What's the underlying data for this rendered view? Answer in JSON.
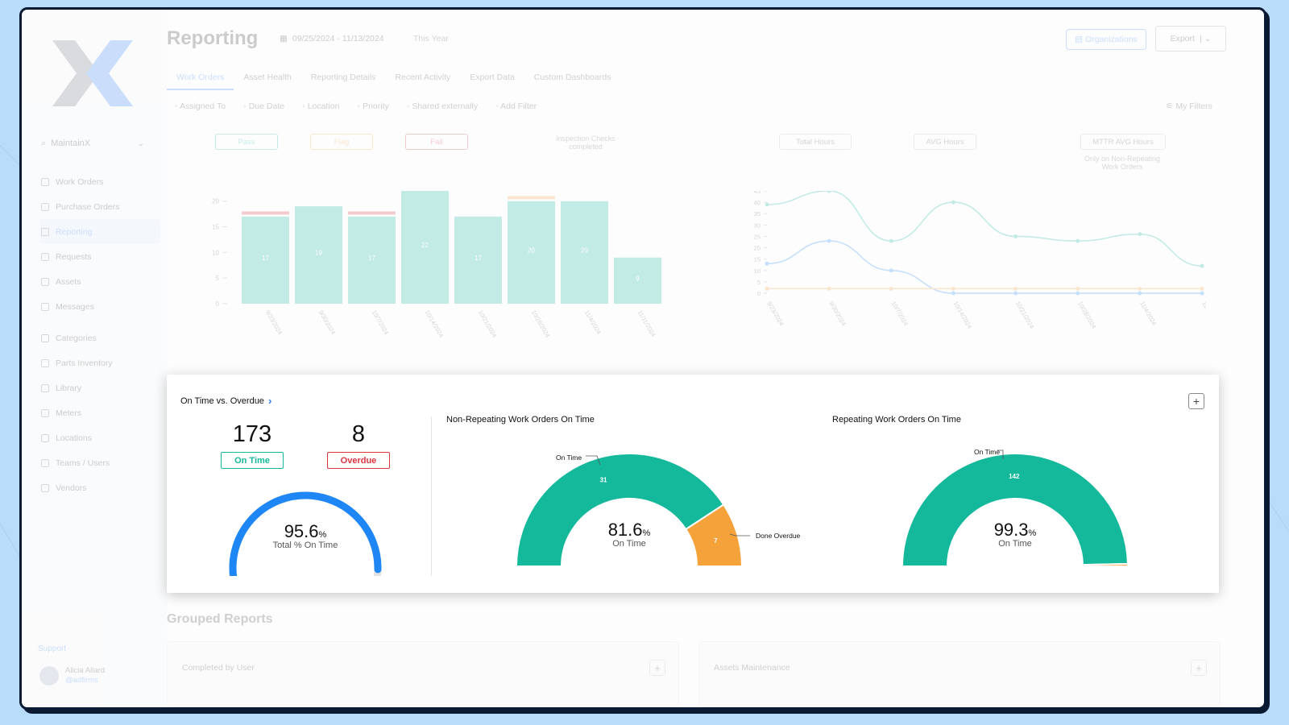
{
  "app": {
    "org_name": "MaintainX",
    "page_title": "Reporting",
    "date_range": "09/25/2024 - 11/13/2024",
    "date_preset": "This Year",
    "organizations_button": "Organizations",
    "export_button": "Export",
    "tabs": [
      {
        "label": "Work Orders",
        "active": true
      },
      {
        "label": "Asset Health"
      },
      {
        "label": "Reporting Details"
      },
      {
        "label": "Recent Activity"
      },
      {
        "label": "Export Data"
      },
      {
        "label": "Custom Dashboards"
      }
    ],
    "filters": [
      {
        "label": "Assigned To",
        "icon": "user-icon"
      },
      {
        "label": "Due Date",
        "icon": "clock-icon"
      },
      {
        "label": "Location",
        "icon": "pin-icon"
      },
      {
        "label": "Priority",
        "icon": "flag-icon"
      },
      {
        "label": "Shared externally",
        "icon": "share-icon"
      },
      {
        "label": "Add Filter",
        "icon": "plus-icon"
      }
    ],
    "my_filters": "My Filters",
    "sidebar": {
      "items": [
        {
          "label": "Work Orders",
          "icon": "clipboard-icon"
        },
        {
          "label": "Purchase Orders",
          "icon": "document-icon"
        },
        {
          "label": "Reporting",
          "icon": "chart-icon",
          "active": true
        },
        {
          "label": "Requests",
          "icon": "inbox-icon"
        },
        {
          "label": "Assets",
          "icon": "cube-icon"
        },
        {
          "label": "Messages",
          "icon": "chat-icon"
        },
        {
          "label": "Categories",
          "icon": "tag-icon"
        },
        {
          "label": "Parts Inventory",
          "icon": "gear-icon"
        },
        {
          "label": "Library",
          "icon": "book-icon"
        },
        {
          "label": "Meters",
          "icon": "meter-icon"
        },
        {
          "label": "Locations",
          "icon": "pin-icon"
        },
        {
          "label": "Teams / Users",
          "icon": "users-icon"
        },
        {
          "label": "Vendors",
          "icon": "store-icon"
        }
      ],
      "support": "Support",
      "user_name": "Alicia Allard",
      "user_handle": "@adfirms"
    },
    "chips": {
      "pass": "Pass",
      "flag": "Flag",
      "fail": "Fail",
      "inspection_label": "Inspection Checks completed",
      "total_hours": "Total Hours",
      "avg_hours": "AVG Hours",
      "mttr": "MTTR AVG Hours",
      "mttr_sub": "Only on Non-Repeating Work Orders"
    },
    "grouped_reports": {
      "title": "Grouped Reports",
      "cards": [
        "Completed by User",
        "Assets Maintenance"
      ]
    }
  },
  "colors": {
    "teal": "#14b89a",
    "orange": "#f5a23b",
    "blue": "#1f86f5",
    "red": "#d9363e",
    "accent": "#2d7ff9"
  },
  "card": {
    "title": "On Time vs. Overdue",
    "on_time_count": "173",
    "on_time_label": "On Time",
    "overdue_count": "8",
    "overdue_label": "Overdue",
    "total_gauge": {
      "value": "95.6",
      "pct_sign": "%",
      "caption": "Total % On Time"
    },
    "non_repeating": {
      "title": "Non-Repeating Work Orders On Time",
      "value": "81.6",
      "pct_sign": "%",
      "caption": "On Time",
      "on_time_callout": "On Time",
      "overdue_callout": "Done Overdue",
      "on_time_slice_label": "31",
      "overdue_slice_label": "7"
    },
    "repeating": {
      "title": "Repeating Work Orders On Time",
      "value": "99.3",
      "pct_sign": "%",
      "caption": "On Time",
      "on_time_callout": "On Time",
      "on_time_slice_label": "142"
    }
  },
  "chart_data": [
    {
      "type": "bar",
      "title": "",
      "categories": [
        "9/23/2024",
        "9/30/2024",
        "10/7/2024",
        "10/14/2024",
        "10/21/2024",
        "10/28/2024",
        "11/4/2024",
        "11/11/2024"
      ],
      "series": [
        {
          "name": "Pass",
          "values": [
            17,
            19,
            17,
            22,
            17,
            20,
            20,
            9
          ]
        },
        {
          "name": "Fail",
          "values": [
            1,
            0,
            1,
            0,
            0,
            0,
            0,
            0
          ]
        },
        {
          "name": "Flag",
          "values": [
            0,
            0,
            0,
            0,
            0,
            1,
            0,
            0
          ]
        }
      ],
      "data_labels": [
        "17",
        "19",
        "17",
        "22",
        "17",
        "20",
        "20",
        "9"
      ],
      "yticks": [
        0,
        5,
        10,
        15,
        20
      ],
      "ylim": [
        0,
        22
      ]
    },
    {
      "type": "line",
      "title": "",
      "x": [
        "9/23/2024",
        "9/30/2024",
        "10/7/2024",
        "10/14/2024",
        "10/21/2024",
        "10/28/2024",
        "11/4/2024",
        "11/11/2024"
      ],
      "series": [
        {
          "name": "Total Hours",
          "values": [
            39,
            45,
            23,
            40,
            25,
            23,
            26,
            12
          ]
        },
        {
          "name": "AVG Hours",
          "values": [
            13,
            23,
            10,
            0,
            0,
            0,
            0,
            0
          ]
        },
        {
          "name": "MTTR AVG Hours",
          "values": [
            2,
            2,
            2,
            2,
            2,
            2,
            2,
            2
          ]
        }
      ],
      "yticks": [
        0,
        5,
        10,
        15,
        20,
        25,
        30,
        35,
        40,
        45
      ],
      "ylim": [
        0,
        45
      ]
    },
    {
      "type": "pie",
      "title": "Total % On Time",
      "gauge": true,
      "values": [
        95.6
      ],
      "max": 100
    },
    {
      "type": "pie",
      "title": "Non-Repeating Work Orders On Time",
      "gauge": true,
      "categories": [
        "On Time",
        "Done Overdue"
      ],
      "values": [
        31,
        7
      ]
    },
    {
      "type": "pie",
      "title": "Repeating Work Orders On Time",
      "gauge": true,
      "categories": [
        "On Time",
        "Done Overdue"
      ],
      "values": [
        142,
        1
      ]
    }
  ]
}
